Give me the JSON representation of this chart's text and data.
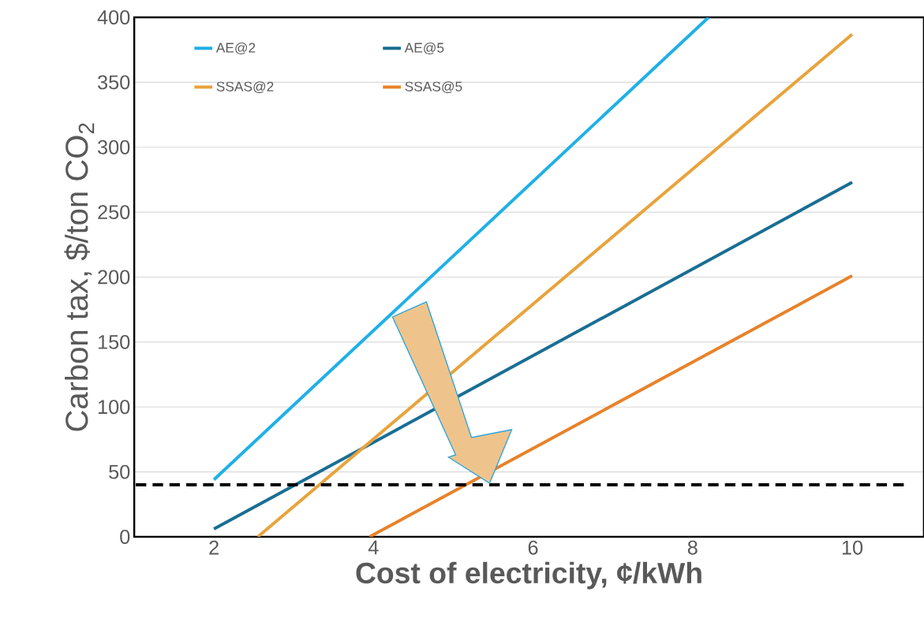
{
  "chart_data": {
    "type": "line",
    "xlabel": "Cost of electricity, ¢/kWh",
    "ylabel": "Carbon tax, $/ton CO$_{2}$",
    "series": [
      {
        "name": "AE@2",
        "color": "#1fb0e6",
        "x": [
          2,
          8.2
        ],
        "values": [
          44,
          400
        ]
      },
      {
        "name": "AE@5",
        "color": "#1a6e94",
        "x": [
          2,
          10
        ],
        "values": [
          6,
          273
        ]
      },
      {
        "name": "SSAS@2",
        "color": "#e8a33c",
        "x": [
          2.55,
          10
        ],
        "values": [
          0,
          387
        ]
      },
      {
        "name": "SSAS@5",
        "color": "#e8822a",
        "x": [
          3.95,
          10
        ],
        "values": [
          0,
          201
        ]
      }
    ],
    "xlim": [
      1,
      10.9
    ],
    "ylim": [
      0,
      400
    ],
    "xticks": [
      2,
      4,
      6,
      8,
      10
    ],
    "yticks": [
      0,
      50,
      100,
      150,
      200,
      250,
      300,
      350,
      400
    ],
    "grid": "y",
    "legend": "top left",
    "marker": "none",
    "line_style": "solid",
    "ref_lines": [
      {
        "axis": "y",
        "value": 40,
        "color": "#000000",
        "line_style": "dashed"
      }
    ]
  }
}
